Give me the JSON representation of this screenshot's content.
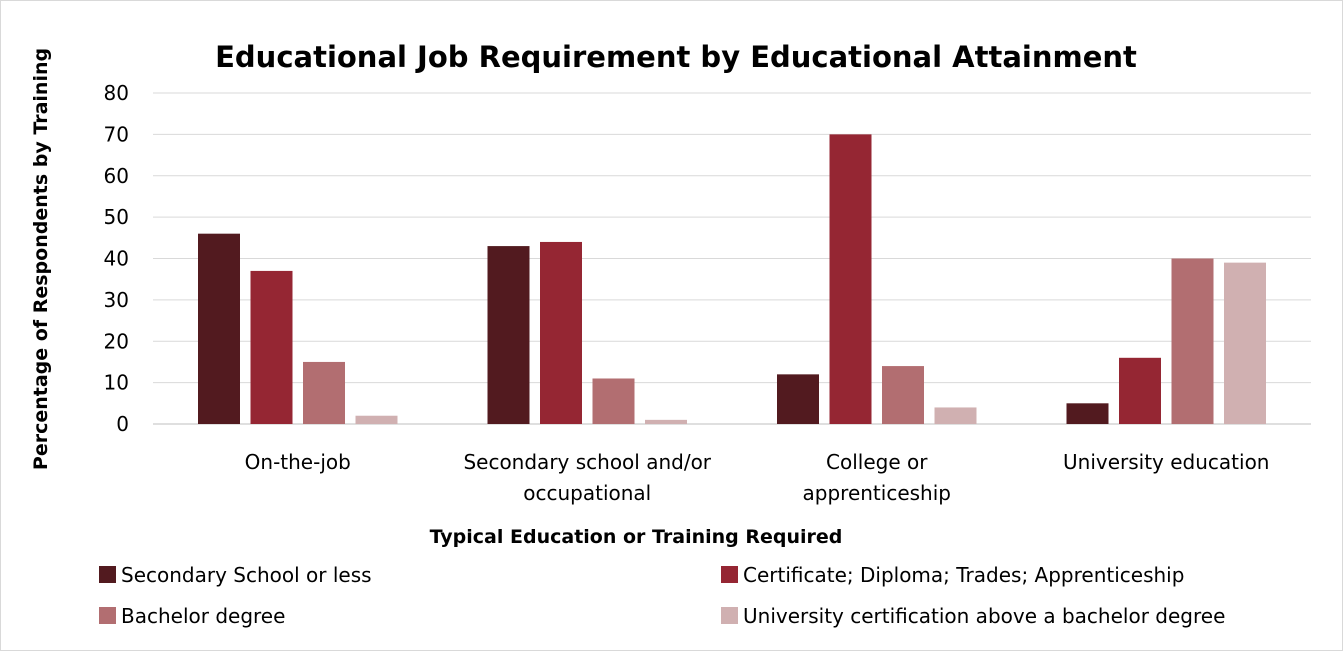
{
  "chart_data": {
    "type": "bar",
    "title": "Educational Job Requirement by Educational Attainment",
    "xlabel": "Typical Education or Training Required",
    "ylabel": "Percentage of Respondents by Training",
    "ylim": [
      0,
      80
    ],
    "yticks": [
      0,
      10,
      20,
      30,
      40,
      50,
      60,
      70,
      80
    ],
    "grid": true,
    "legend_position": "bottom",
    "categories": [
      [
        "On-the-job"
      ],
      [
        "Secondary school and/or",
        "occupational"
      ],
      [
        "College or",
        "apprenticeship"
      ],
      [
        "University education"
      ]
    ],
    "series": [
      {
        "name": "Secondary School or less",
        "color": "#521a1f",
        "values": [
          46,
          43,
          12,
          5
        ]
      },
      {
        "name": "Certificate; Diploma; Trades; Apprenticeship",
        "color": "#952633",
        "values": [
          37,
          44,
          70,
          16
        ]
      },
      {
        "name": "Bachelor degree",
        "color": "#b26e71",
        "values": [
          15,
          11,
          14,
          40
        ]
      },
      {
        "name": "University certification above a bachelor degree",
        "color": "#d0b0b1",
        "values": [
          2,
          1,
          4,
          39
        ]
      }
    ]
  }
}
